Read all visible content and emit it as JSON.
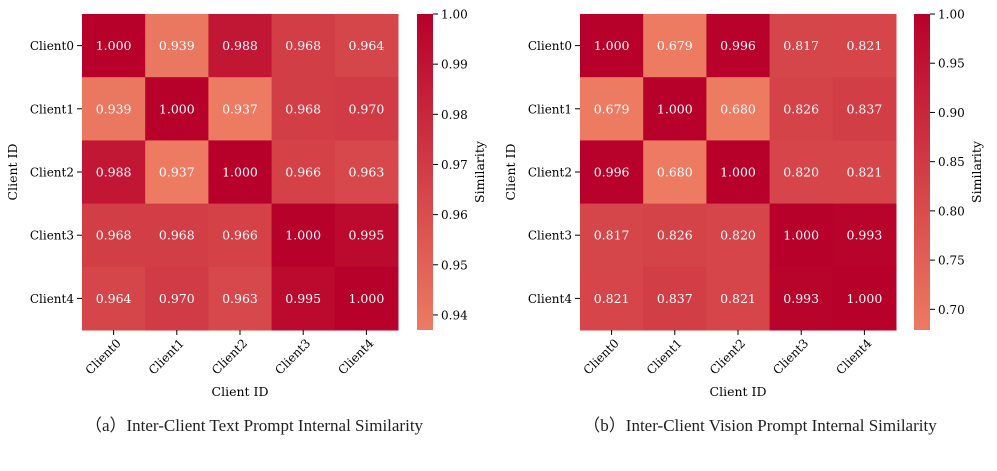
{
  "colors": {
    "low": "#ec7b62",
    "high": "#b7002a",
    "text": "#ffffff"
  },
  "chart_data": [
    {
      "type": "heatmap",
      "title": "",
      "caption": "（a）Inter-Client Text Prompt Internal Similarity",
      "xlabel": "Client ID",
      "ylabel": "Client ID",
      "x_categories": [
        "Client0",
        "Client1",
        "Client2",
        "Client3",
        "Client4"
      ],
      "y_categories": [
        "Client0",
        "Client1",
        "Client2",
        "Client3",
        "Client4"
      ],
      "values": [
        [
          1.0,
          0.939,
          0.988,
          0.968,
          0.964
        ],
        [
          0.939,
          1.0,
          0.937,
          0.968,
          0.97
        ],
        [
          0.988,
          0.937,
          1.0,
          0.966,
          0.963
        ],
        [
          0.968,
          0.968,
          0.966,
          1.0,
          0.995
        ],
        [
          0.964,
          0.97,
          0.963,
          0.995,
          1.0
        ]
      ],
      "value_labels": [
        [
          "1.000",
          "0.939",
          "0.988",
          "0.968",
          "0.964"
        ],
        [
          "0.939",
          "1.000",
          "0.937",
          "0.968",
          "0.970"
        ],
        [
          "0.988",
          "0.937",
          "1.000",
          "0.966",
          "0.963"
        ],
        [
          "0.968",
          "0.968",
          "0.966",
          "1.000",
          "0.995"
        ],
        [
          "0.964",
          "0.970",
          "0.963",
          "0.995",
          "1.000"
        ]
      ],
      "colorbar": {
        "label": "Similarity",
        "range": [
          0.937,
          1.0
        ],
        "ticks": [
          1.0,
          0.99,
          0.98,
          0.97,
          0.96,
          0.95,
          0.94
        ],
        "tick_labels": [
          "1.00",
          "0.99",
          "0.98",
          "0.97",
          "0.96",
          "0.95",
          "0.94"
        ]
      }
    },
    {
      "type": "heatmap",
      "title": "",
      "caption": "（b）Inter-Client Vision Prompt Internal Similarity",
      "xlabel": "Client ID",
      "ylabel": "Client ID",
      "x_categories": [
        "Client0",
        "Client1",
        "Client2",
        "Client3",
        "Client4"
      ],
      "y_categories": [
        "Client0",
        "Client1",
        "Client2",
        "Client3",
        "Client4"
      ],
      "values": [
        [
          1.0,
          0.679,
          0.996,
          0.817,
          0.821
        ],
        [
          0.679,
          1.0,
          0.68,
          0.826,
          0.837
        ],
        [
          0.996,
          0.68,
          1.0,
          0.82,
          0.821
        ],
        [
          0.817,
          0.826,
          0.82,
          1.0,
          0.993
        ],
        [
          0.821,
          0.837,
          0.821,
          0.993,
          1.0
        ]
      ],
      "value_labels": [
        [
          "1.000",
          "0.679",
          "0.996",
          "0.817",
          "0.821"
        ],
        [
          "0.679",
          "1.000",
          "0.680",
          "0.826",
          "0.837"
        ],
        [
          "0.996",
          "0.680",
          "1.000",
          "0.820",
          "0.821"
        ],
        [
          "0.817",
          "0.826",
          "0.820",
          "1.000",
          "0.993"
        ],
        [
          "0.821",
          "0.837",
          "0.821",
          "0.993",
          "1.000"
        ]
      ],
      "colorbar": {
        "label": "Similarity",
        "range": [
          0.679,
          1.0
        ],
        "ticks": [
          1.0,
          0.95,
          0.9,
          0.85,
          0.8,
          0.75,
          0.7
        ],
        "tick_labels": [
          "1.00",
          "0.95",
          "0.90",
          "0.85",
          "0.80",
          "0.75",
          "0.70"
        ]
      }
    }
  ]
}
